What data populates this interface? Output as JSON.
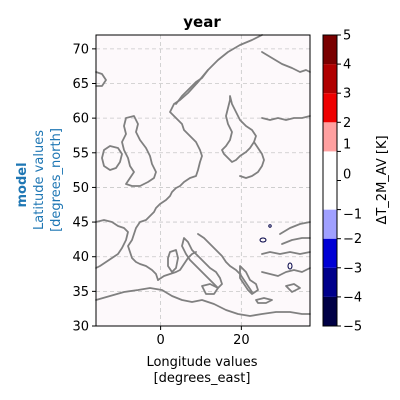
{
  "chart_data": {
    "type": "heatmap",
    "title": "year",
    "xlabel_line1": "Longitude values",
    "xlabel_line2": "[degrees_east]",
    "ylabel_prefix": "model",
    "ylabel_line1": "Latitude values",
    "ylabel_line2": "[degrees_north]",
    "xlim": [
      -16,
      37
    ],
    "ylim": [
      30,
      72
    ],
    "xticks": [
      0,
      20
    ],
    "xtick_labels": [
      "0",
      "20"
    ],
    "yticks": [
      30,
      35,
      40,
      45,
      50,
      55,
      60,
      65,
      70
    ],
    "ytick_labels": [
      "30",
      "35",
      "40",
      "45",
      "50",
      "55",
      "60",
      "65",
      "70"
    ],
    "grid": true,
    "grid_style": "dashed",
    "colorbar": {
      "label": "ΔT_2M_AV [K]",
      "range": [
        -5,
        5
      ],
      "ticks": [
        -5,
        -4,
        -3,
        -2,
        -1,
        0,
        1,
        2,
        3,
        4,
        5
      ],
      "tick_labels": [
        "−5",
        "−4",
        "−3",
        "−2",
        "−1",
        "0",
        "1",
        "2",
        "3",
        "4",
        "5"
      ],
      "bins": [
        {
          "from": -5,
          "to": -4,
          "color": "#000045"
        },
        {
          "from": -4,
          "to": -3,
          "color": "#00008b"
        },
        {
          "from": -3,
          "to": -2,
          "color": "#0000d4"
        },
        {
          "from": -2,
          "to": -1,
          "color": "#a0a0ff"
        },
        {
          "from": -1,
          "to": 1,
          "color": "#ffffff"
        },
        {
          "from": 1,
          "to": 2,
          "color": "#ffa0a0"
        },
        {
          "from": 2,
          "to": 3,
          "color": "#ee0000"
        },
        {
          "from": 3,
          "to": 4,
          "color": "#b00000"
        },
        {
          "from": 4,
          "to": 5,
          "color": "#7a0000"
        }
      ]
    },
    "field_value_description": "near-zero everywhere",
    "field_background_color": "#fdf9fb",
    "coastline_color": "#808080",
    "ylabel_color": "#1f77b4"
  }
}
